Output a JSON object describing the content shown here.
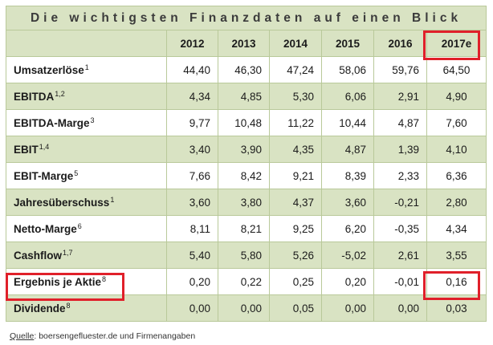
{
  "title": "Die wichtigsten Finanzdaten auf einen Blick",
  "columns": [
    "2012",
    "2013",
    "2014",
    "2015",
    "2016",
    "2017e"
  ],
  "rows": [
    {
      "label": "Umsatzerlöse",
      "sup": "1",
      "values": [
        "44,40",
        "46,30",
        "47,24",
        "58,06",
        "59,76",
        "64,50"
      ]
    },
    {
      "label": "EBITDA",
      "sup": "1,2",
      "values": [
        "4,34",
        "4,85",
        "5,30",
        "6,06",
        "2,91",
        "4,90"
      ]
    },
    {
      "label": "EBITDA-Marge",
      "sup": "3",
      "values": [
        "9,77",
        "10,48",
        "11,22",
        "10,44",
        "4,87",
        "7,60"
      ]
    },
    {
      "label": "EBIT",
      "sup": "1,4",
      "values": [
        "3,40",
        "3,90",
        "4,35",
        "4,87",
        "1,39",
        "4,10"
      ]
    },
    {
      "label": "EBIT-Marge",
      "sup": "5",
      "values": [
        "7,66",
        "8,42",
        "9,21",
        "8,39",
        "2,33",
        "6,36"
      ]
    },
    {
      "label": "Jahresüberschuss",
      "sup": "1",
      "values": [
        "3,60",
        "3,80",
        "4,37",
        "3,60",
        "-0,21",
        "2,80"
      ]
    },
    {
      "label": "Netto-Marge",
      "sup": "6",
      "values": [
        "8,11",
        "8,21",
        "9,25",
        "6,20",
        "-0,35",
        "4,34"
      ]
    },
    {
      "label": "Cashflow",
      "sup": "1,7",
      "values": [
        "5,40",
        "5,80",
        "5,26",
        "-5,02",
        "2,61",
        "3,55"
      ]
    },
    {
      "label": "Ergebnis je Aktie",
      "sup": "8",
      "values": [
        "0,20",
        "0,22",
        "0,25",
        "0,20",
        "-0,01",
        "0,16"
      ]
    },
    {
      "label": "Dividende",
      "sup": "8",
      "values": [
        "0,00",
        "0,00",
        "0,05",
        "0,00",
        "0,00",
        "0,03"
      ]
    }
  ],
  "source": {
    "label": "Quelle",
    "text": ": boersengefluester.de und Firmenangaben"
  },
  "highlight_color": "#e0202a",
  "table_green": "#d9e3c3"
}
